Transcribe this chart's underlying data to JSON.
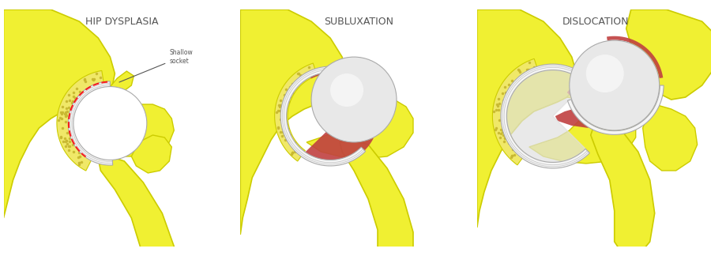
{
  "background": "#ffffff",
  "titles": [
    "HIP DYSPLASIA",
    "SUBLUXATION",
    "DISLOCATION"
  ],
  "title_color": "#555555",
  "title_fontsize": 9,
  "bone_yellow": "#f0f032",
  "bone_yellow_mid": "#e8e010",
  "bone_outline": "#cccc00",
  "spongy_color": "#d4c840",
  "spongy_dot": "#c8b830",
  "cartilage_white": "#f5f5f5",
  "cartilage_gray": "#d0d0d0",
  "cartilage_outline": "#aaaaaa",
  "red_tissue": "#c04040",
  "red_tissue2": "#b83030",
  "annotation_color": "#555555",
  "line_gray": "#888888",
  "femhead_color": "#e0e0e0",
  "socket_inner": "#f8f8f8"
}
